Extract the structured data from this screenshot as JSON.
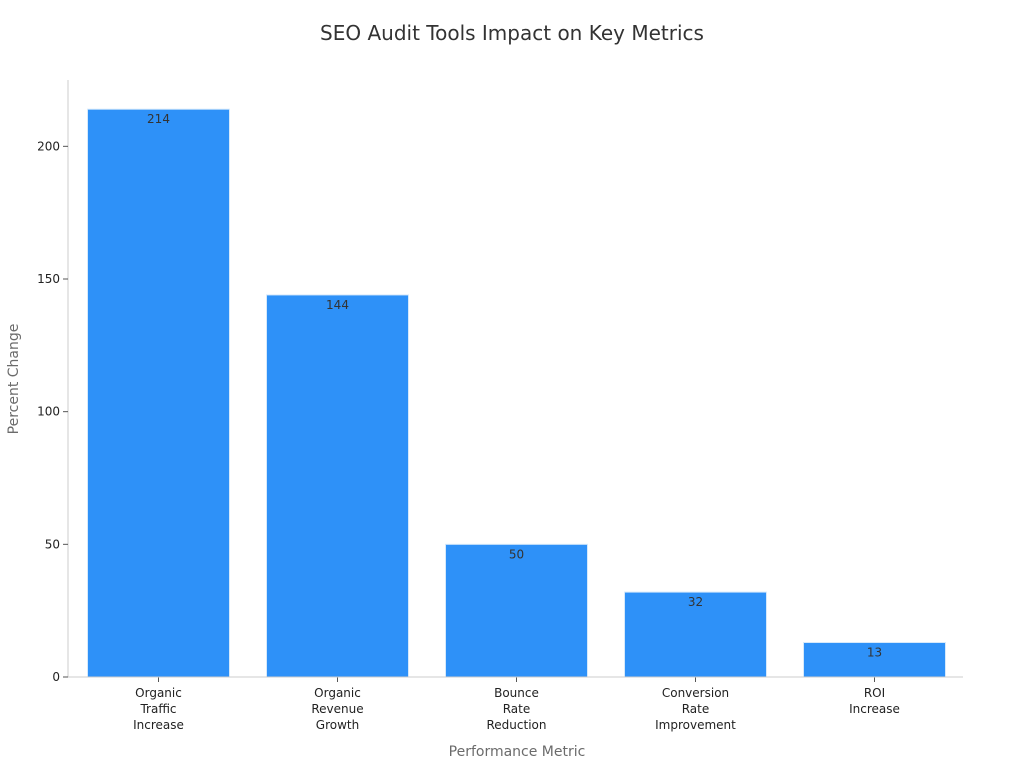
{
  "chart_data": {
    "type": "bar",
    "title": "SEO Audit Tools Impact on Key Metrics",
    "xlabel": "Performance Metric",
    "ylabel": "Percent Change",
    "categories": [
      [
        "Organic",
        "Traffic",
        "Increase"
      ],
      [
        "Organic",
        "Revenue",
        "Growth"
      ],
      [
        "Bounce",
        "Rate",
        "Reduction"
      ],
      [
        "Conversion",
        "Rate",
        "Improvement"
      ],
      [
        "ROI",
        "Increase"
      ]
    ],
    "values": [
      214,
      144,
      50,
      32,
      13
    ],
    "data_labels": [
      "214",
      "144",
      "50",
      "32",
      "13"
    ],
    "yticks": [
      0,
      50,
      100,
      150,
      200
    ],
    "ytick_labels": [
      "0",
      "50",
      "100",
      "150",
      "200"
    ],
    "ylim": [
      0,
      225
    ],
    "grid": false,
    "colors": {
      "bar": "#2e91f8",
      "bar_edge": "#d6e9fb"
    }
  }
}
